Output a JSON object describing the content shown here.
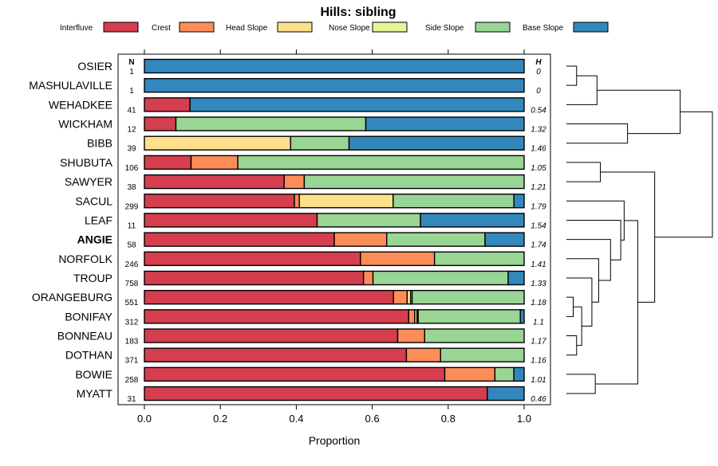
{
  "chart_data": {
    "type": "bar",
    "orientation": "horizontal-stacked",
    "title": "Hills: sibling",
    "xlabel": "Proportion",
    "ylabel": "",
    "xlim": [
      0,
      1
    ],
    "x_ticks": [
      "0.0",
      "0.2",
      "0.4",
      "0.6",
      "0.8",
      "1.0"
    ],
    "x_tick_values": [
      0,
      0.2,
      0.4,
      0.6,
      0.8,
      1.0
    ],
    "n_header": "N",
    "h_header": "H",
    "legend_position": "top",
    "highlighted_category": "ANGIE",
    "series": [
      {
        "name": "Interfluve",
        "color": "#d53e4f"
      },
      {
        "name": "Crest",
        "color": "#fc8d59"
      },
      {
        "name": "Head Slope",
        "color": "#fee08b"
      },
      {
        "name": "Nose Slope",
        "color": "#e6f598"
      },
      {
        "name": "Side Slope",
        "color": "#99d594"
      },
      {
        "name": "Base Slope",
        "color": "#3288bd"
      }
    ],
    "categories": [
      "OSIER",
      "MASHULAVILLE",
      "WEHADKEE",
      "WICKHAM",
      "BIBB",
      "SHUBUTA",
      "SAWYER",
      "SACUL",
      "LEAF",
      "ANGIE",
      "NORFOLK",
      "TROUP",
      "ORANGEBURG",
      "BONIFAY",
      "BONNEAU",
      "DOTHAN",
      "BOWIE",
      "MYATT"
    ],
    "rows": [
      {
        "name": "OSIER",
        "n": "1",
        "h": "0",
        "values": [
          0,
          0,
          0,
          0,
          0,
          1.0
        ]
      },
      {
        "name": "MASHULAVILLE",
        "n": "1",
        "h": "0",
        "values": [
          0,
          0,
          0,
          0,
          0,
          1.0
        ]
      },
      {
        "name": "WEHADKEE",
        "n": "41",
        "h": "0.54",
        "values": [
          0.12,
          0,
          0,
          0,
          0,
          0.88
        ]
      },
      {
        "name": "WICKHAM",
        "n": "12",
        "h": "1.32",
        "values": [
          0.083,
          0,
          0,
          0,
          0.5,
          0.417
        ]
      },
      {
        "name": "BIBB",
        "n": "39",
        "h": "1.46",
        "values": [
          0,
          0,
          0.385,
          0,
          0.154,
          0.461
        ]
      },
      {
        "name": "SHUBUTA",
        "n": "106",
        "h": "1.05",
        "values": [
          0.123,
          0.123,
          0,
          0,
          0.754,
          0
        ]
      },
      {
        "name": "SAWYER",
        "n": "38",
        "h": "1.21",
        "values": [
          0.368,
          0.053,
          0,
          0,
          0.579,
          0
        ]
      },
      {
        "name": "SACUL",
        "n": "299",
        "h": "1.79",
        "values": [
          0.395,
          0.013,
          0.247,
          0,
          0.318,
          0.027
        ]
      },
      {
        "name": "LEAF",
        "n": "11",
        "h": "1.54",
        "values": [
          0.455,
          0,
          0,
          0,
          0.272,
          0.273
        ]
      },
      {
        "name": "ANGIE",
        "n": "58",
        "h": "1.74",
        "values": [
          0.5,
          0.138,
          0,
          0,
          0.259,
          0.103
        ]
      },
      {
        "name": "NORFOLK",
        "n": "246",
        "h": "1.41",
        "values": [
          0.569,
          0.195,
          0,
          0,
          0.236,
          0
        ]
      },
      {
        "name": "TROUP",
        "n": "758",
        "h": "1.33",
        "values": [
          0.577,
          0.025,
          0,
          0,
          0.356,
          0.042
        ]
      },
      {
        "name": "ORANGEBURG",
        "n": "551",
        "h": "1.18",
        "values": [
          0.656,
          0.036,
          0.009,
          0.004,
          0.295,
          0
        ]
      },
      {
        "name": "BONIFAY",
        "n": "312",
        "h": "1.1",
        "values": [
          0.696,
          0.016,
          0.006,
          0.003,
          0.269,
          0.01
        ]
      },
      {
        "name": "BONNEAU",
        "n": "183",
        "h": "1.17",
        "values": [
          0.667,
          0.071,
          0,
          0,
          0.262,
          0
        ]
      },
      {
        "name": "DOTHAN",
        "n": "371",
        "h": "1.16",
        "values": [
          0.69,
          0.09,
          0,
          0,
          0.22,
          0
        ]
      },
      {
        "name": "BOWIE",
        "n": "258",
        "h": "1.01",
        "values": [
          0.791,
          0.132,
          0,
          0,
          0.05,
          0.027
        ]
      },
      {
        "name": "MYATT",
        "n": "31",
        "h": "0.46",
        "values": [
          0.903,
          0,
          0,
          0,
          0,
          0.097
        ]
      }
    ],
    "dendrogram": {
      "description": "hierarchical clustering of rows, leaves in row order",
      "merges": [
        {
          "a": "OSIER",
          "b": "MASHULAVILLE",
          "height": 0.3
        },
        {
          "a": "#0",
          "b": "WEHADKEE",
          "height": 0.9
        },
        {
          "a": "WICKHAM",
          "b": "BIBB",
          "height": 1.8
        },
        {
          "a": "#1",
          "b": "#2",
          "height": 3.35
        },
        {
          "a": "SHUBUTA",
          "b": "SAWYER",
          "height": 1.0
        },
        {
          "a": "ORANGEBURG",
          "b": "BONIFAY",
          "height": 0.2
        },
        {
          "a": "BONNEAU",
          "b": "DOTHAN",
          "height": 0.3
        },
        {
          "a": "#5",
          "b": "#6",
          "height": 0.45
        },
        {
          "a": "TROUP",
          "b": "#7",
          "height": 0.75
        },
        {
          "a": "NORFOLK",
          "b": "#8",
          "height": 0.95
        },
        {
          "a": "ANGIE",
          "b": "#9",
          "height": 1.3
        },
        {
          "a": "LEAF",
          "b": "#10",
          "height": 1.6
        },
        {
          "a": "SACUL",
          "b": "#11",
          "height": 1.7
        },
        {
          "a": "BOWIE",
          "b": "MYATT",
          "height": 0.85
        },
        {
          "a": "#12",
          "b": "#13",
          "height": 2.1
        },
        {
          "a": "#4",
          "b": "#14",
          "height": 2.6
        },
        {
          "a": "#3",
          "b": "#15",
          "height": 4.3
        }
      ],
      "max_height": 4.3
    }
  }
}
